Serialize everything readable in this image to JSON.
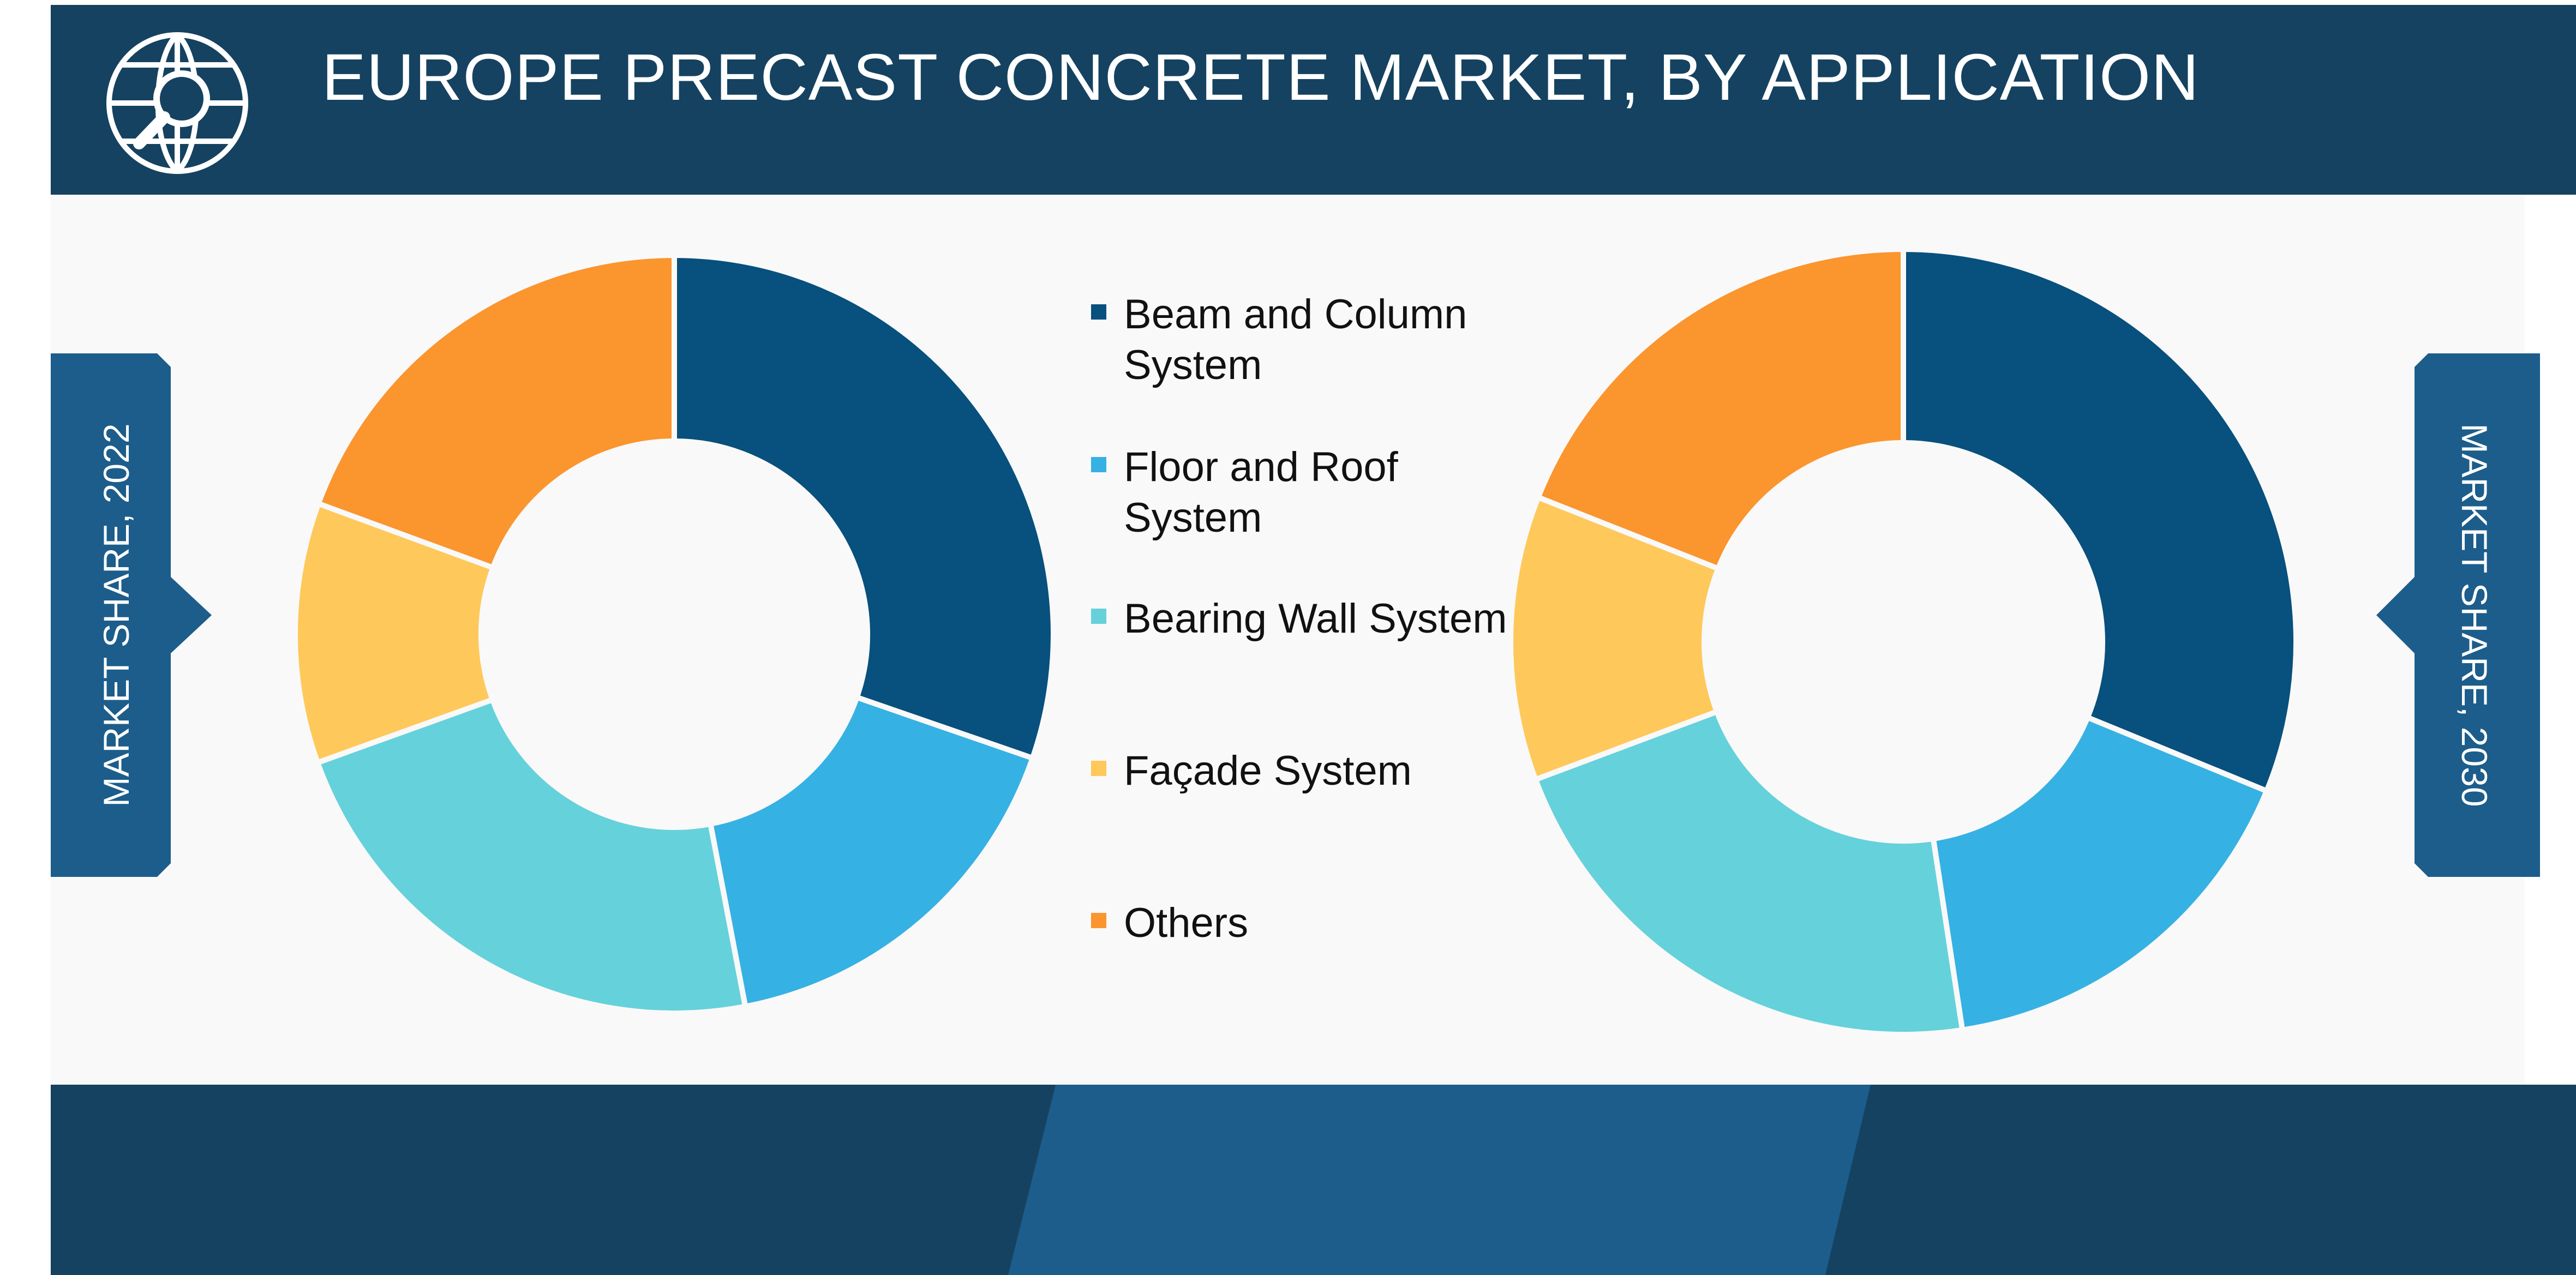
{
  "header": {
    "title": "EUROPE PRECAST CONCRETE MARKET, BY APPLICATION",
    "icon": "globe-search-icon"
  },
  "side_tabs": {
    "left_label": "MARKET SHARE, 2022",
    "right_label": "MARKET SHARE, 2030"
  },
  "colors": {
    "header_bg": "#154260",
    "tab_bg": "#1c5d8b",
    "panel_bg": "#f9f9f9"
  },
  "chart_data": [
    {
      "type": "pie",
      "variant": "donut",
      "year_label": "MARKET SHARE, 2022",
      "categories": [
        "Beam and Column System",
        "Floor and Roof System",
        "Bearing Wall System",
        "Façade System",
        "Others"
      ],
      "values": [
        30.3,
        16.7,
        22.5,
        11.1,
        19.4
      ],
      "colors": [
        "#08507d",
        "#36b1e3",
        "#65d1db",
        "#fec85b",
        "#fb952e"
      ],
      "legend_position": "center"
    },
    {
      "type": "pie",
      "variant": "donut",
      "year_label": "MARKET SHARE, 2030",
      "categories": [
        "Beam and Column System",
        "Floor and Roof System",
        "Bearing Wall System",
        "Façade System",
        "Others"
      ],
      "values": [
        31.2,
        16.4,
        21.7,
        11.7,
        19.0
      ],
      "colors": [
        "#08507d",
        "#36b1e3",
        "#65d1db",
        "#fec85b",
        "#fb952e"
      ],
      "legend_position": "center"
    }
  ],
  "legend": [
    {
      "label": "Beam and Column System",
      "color": "#08507d"
    },
    {
      "label": "Floor and Roof System",
      "color": "#36b1e3"
    },
    {
      "label": "Bearing Wall System",
      "color": "#65d1db"
    },
    {
      "label": "Façade System",
      "color": "#fec85b"
    },
    {
      "label": "Others",
      "color": "#fb952e"
    }
  ]
}
